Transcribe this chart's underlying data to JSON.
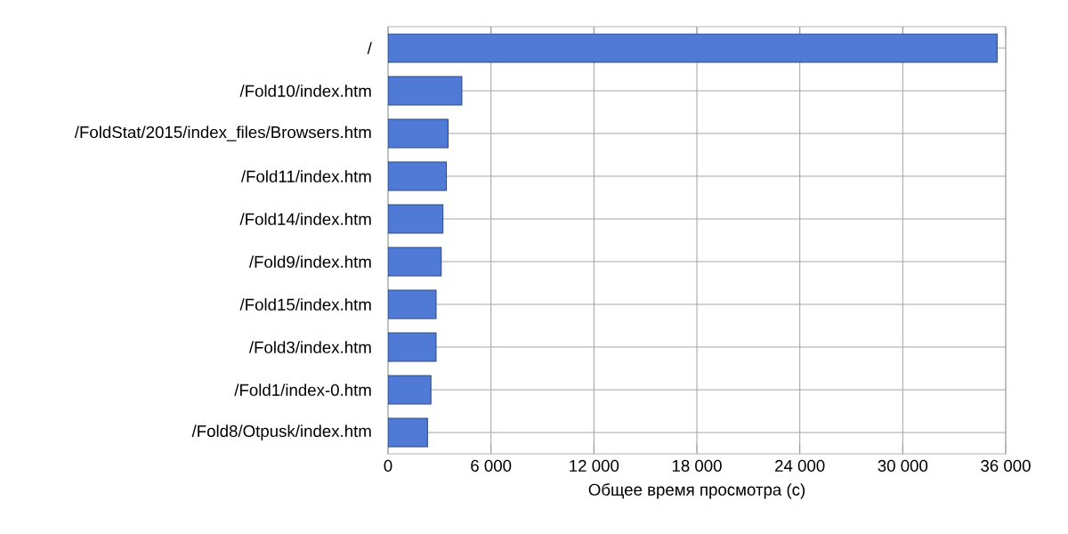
{
  "chart_data": {
    "type": "bar",
    "orientation": "horizontal",
    "xlabel": "Общее время просмотра (с)",
    "categories": [
      "/",
      "/Fold10/index.htm",
      "/FoldStat/2015/index_files/Browsers.htm",
      "/Fold11/index.htm",
      "/Fold14/index.htm",
      "/Fold9/index.htm",
      "/Fold15/index.htm",
      "/Fold3/index.htm",
      "/Fold1/index-0.htm",
      "/Fold8/Otpusk/index.htm"
    ],
    "values": [
      35500,
      4300,
      3500,
      3400,
      3200,
      3100,
      2800,
      2800,
      2500,
      2300
    ],
    "color": "#4f7bd7",
    "xlim": [
      0,
      36000
    ],
    "xticks": [
      0,
      {
        "value": 6000,
        "label": "6 000"
      },
      {
        "value": 12000,
        "label": "12 000"
      },
      {
        "value": 18000,
        "label": "18 000"
      },
      {
        "value": 24000,
        "label": "24 000"
      },
      {
        "value": 30000,
        "label": "30 000"
      },
      {
        "value": 36000,
        "label": "36 000"
      }
    ],
    "grid": true
  }
}
